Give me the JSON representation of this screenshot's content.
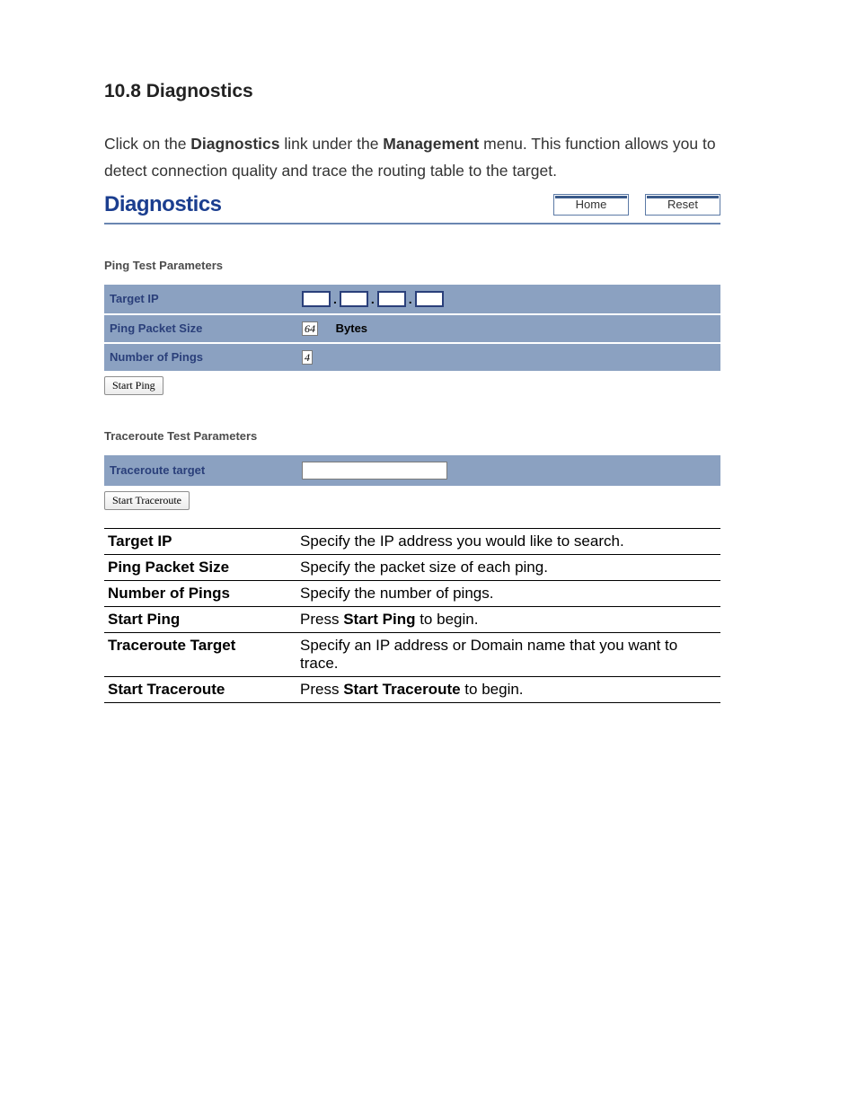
{
  "heading": "10.8 Diagnostics",
  "intro": {
    "pre1": "Click on the ",
    "bold1": "Diagnostics",
    "mid1": " link under the ",
    "bold2": "Management",
    "post1": " menu. This function allows you to detect connection quality and trace the routing table to the target."
  },
  "panel": {
    "title": "Diagnostics",
    "home_btn": "Home",
    "reset_btn": "Reset"
  },
  "ping_section": {
    "title": "Ping Test Parameters",
    "target_ip_label": "Target IP",
    "packet_size_label": "Ping Packet Size",
    "packet_size_value": "64",
    "packet_size_unit": "Bytes",
    "num_pings_label": "Number of Pings",
    "num_pings_value": "4",
    "start_btn": "Start Ping"
  },
  "trace_section": {
    "title": "Traceroute Test Parameters",
    "target_label": "Traceroute target",
    "start_btn": "Start Traceroute"
  },
  "descriptions": {
    "rows": [
      {
        "label": "Target IP",
        "pre": "Specify the IP address you would like to search.",
        "bold": "",
        "post": ""
      },
      {
        "label": "Ping Packet Size",
        "pre": "Specify the packet size of each ping.",
        "bold": "",
        "post": ""
      },
      {
        "label": "Number of Pings",
        "pre": "Specify the number of pings.",
        "bold": "",
        "post": ""
      },
      {
        "label": "Start Ping",
        "pre": "Press ",
        "bold": "Start Ping",
        "post": " to begin."
      },
      {
        "label": "Traceroute Target",
        "pre": "Specify an IP address or Domain name that you want to trace.",
        "bold": "",
        "post": ""
      },
      {
        "label": "Start Traceroute",
        "pre": "Press ",
        "bold": "Start Traceroute",
        "post": " to begin."
      }
    ]
  }
}
